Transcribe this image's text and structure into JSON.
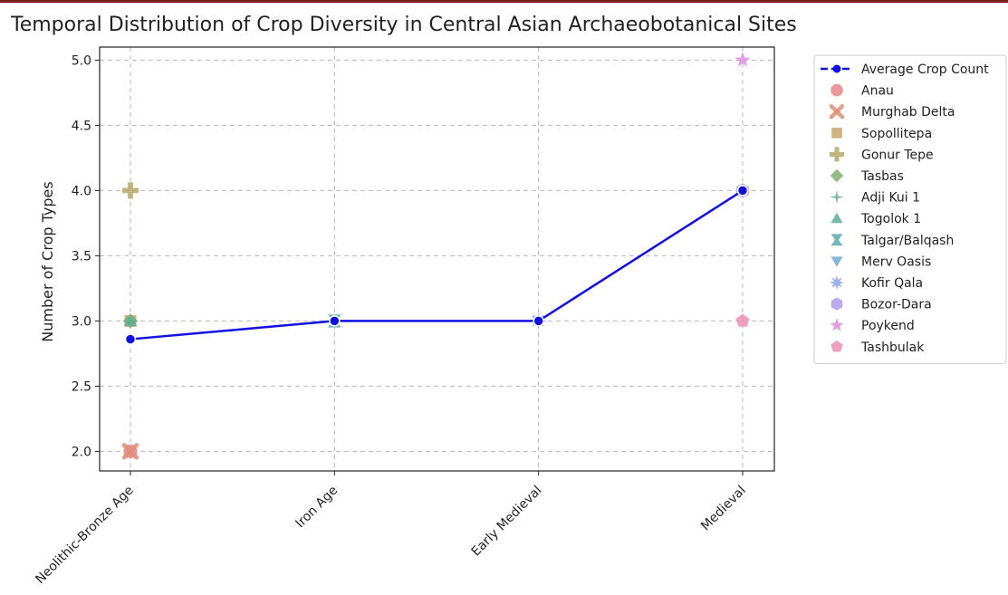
{
  "chart_data": {
    "type": "line",
    "title": "Temporal Distribution of Crop Diversity in Central Asian Archaeobotanical Sites",
    "xlabel": "",
    "ylabel": "Number of Crop Types",
    "categories": [
      "Neolithic-Bronze Age",
      "Iron Age",
      "Early Medieval",
      "Medieval"
    ],
    "ylim": [
      1.85,
      5.1
    ],
    "yticks": [
      2.0,
      2.5,
      3.0,
      3.5,
      4.0,
      4.5,
      5.0
    ],
    "grid": true,
    "legend_position": "outside-right",
    "average_series": {
      "name": "Average Crop Count",
      "color": "#1010e0",
      "values": [
        2.86,
        3.0,
        3.0,
        4.0
      ]
    },
    "sites": [
      {
        "name": "Anau",
        "marker": "circle",
        "color": "#e8868a",
        "period": "Neolithic-Bronze Age",
        "value": 2.0
      },
      {
        "name": "Murghab Delta",
        "marker": "x",
        "color": "#df8f73",
        "period": "Neolithic-Bronze Age",
        "value": 2.0
      },
      {
        "name": "Sopollitepa",
        "marker": "square",
        "color": "#c8a46a",
        "period": "Neolithic-Bronze Age",
        "value": 3.0
      },
      {
        "name": "Gonur Tepe",
        "marker": "plus",
        "color": "#b4a868",
        "period": "Neolithic-Bronze Age",
        "value": 4.0
      },
      {
        "name": "Tasbas",
        "marker": "diamond",
        "color": "#7fb06f",
        "period": "Neolithic-Bronze Age",
        "value": 3.0
      },
      {
        "name": "Adji Kui 1",
        "marker": "thin-star",
        "color": "#63ae86",
        "period": "Neolithic-Bronze Age",
        "value": 3.0
      },
      {
        "name": "Togolok 1",
        "marker": "triangle-up",
        "color": "#5fae9a",
        "period": "Neolithic-Bronze Age",
        "value": 3.0
      },
      {
        "name": "Talgar/Balqash",
        "marker": "hourglass",
        "color": "#5aa9b0",
        "period": "Iron Age",
        "value": 3.0
      },
      {
        "name": "Merv Oasis",
        "marker": "triangle-down",
        "color": "#74a9d8",
        "period": "Early Medieval",
        "value": 3.0
      },
      {
        "name": "Kofir Qala",
        "marker": "star8",
        "color": "#8fa3ee",
        "period": "Early Medieval",
        "value": 3.0
      },
      {
        "name": "Bozor-Dara",
        "marker": "hexagon",
        "color": "#b39be8",
        "period": "Medieval",
        "value": 4.0
      },
      {
        "name": "Poykend",
        "marker": "star",
        "color": "#df8fe0",
        "period": "Medieval",
        "value": 5.0
      },
      {
        "name": "Tashbulak",
        "marker": "pentagon",
        "color": "#eb8fb4",
        "period": "Medieval",
        "value": 3.0
      }
    ]
  }
}
